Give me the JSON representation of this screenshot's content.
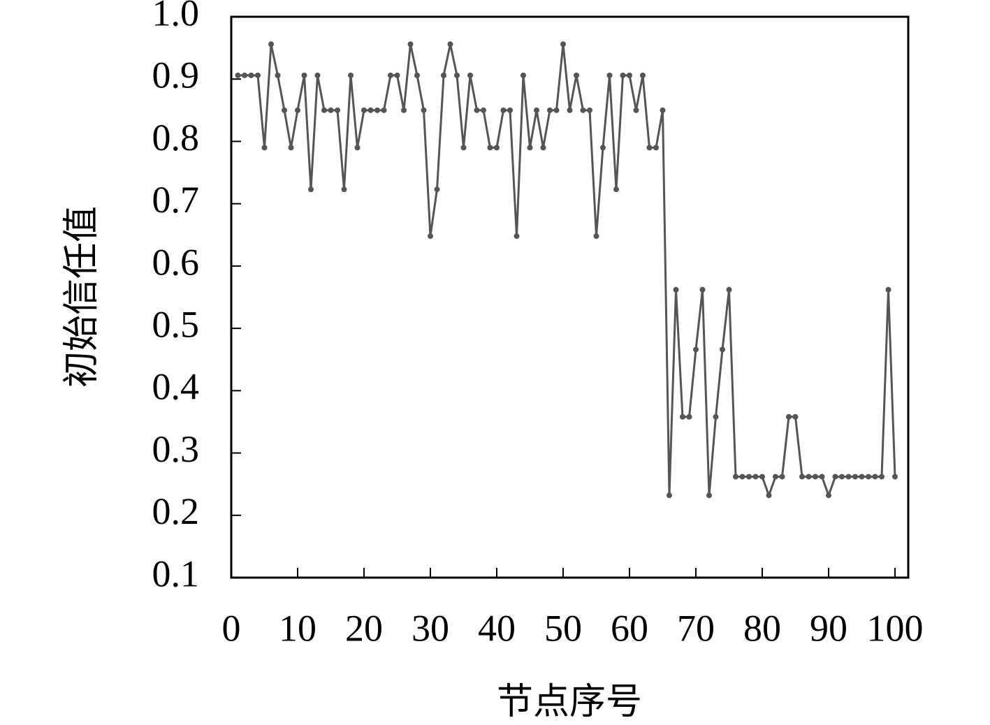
{
  "chart_data": {
    "type": "line",
    "xlabel": "节点序号",
    "ylabel": "初始信任值",
    "color": "#555555",
    "x": [
      1,
      2,
      3,
      4,
      5,
      6,
      7,
      8,
      9,
      10,
      11,
      12,
      13,
      14,
      15,
      16,
      17,
      18,
      19,
      20,
      21,
      22,
      23,
      24,
      25,
      26,
      27,
      28,
      29,
      30,
      31,
      32,
      33,
      34,
      35,
      36,
      37,
      38,
      39,
      40,
      41,
      42,
      43,
      44,
      45,
      46,
      47,
      48,
      49,
      50,
      51,
      52,
      53,
      54,
      55,
      56,
      57,
      58,
      59,
      60,
      61,
      62,
      63,
      64,
      65,
      66,
      67,
      68,
      69,
      70,
      71,
      72,
      73,
      74,
      75,
      76,
      77,
      78,
      79,
      80,
      81,
      82,
      83,
      84,
      85,
      86,
      87,
      88,
      89,
      90,
      91,
      92,
      93,
      94,
      95,
      96,
      97,
      98,
      99,
      100
    ],
    "values": [
      0.906,
      0.906,
      0.906,
      0.906,
      0.79,
      0.956,
      0.906,
      0.85,
      0.79,
      0.85,
      0.906,
      0.723,
      0.906,
      0.85,
      0.85,
      0.85,
      0.723,
      0.906,
      0.79,
      0.85,
      0.85,
      0.85,
      0.85,
      0.906,
      0.906,
      0.85,
      0.956,
      0.906,
      0.85,
      0.648,
      0.723,
      0.906,
      0.956,
      0.906,
      0.79,
      0.906,
      0.85,
      0.85,
      0.79,
      0.79,
      0.85,
      0.85,
      0.648,
      0.906,
      0.79,
      0.85,
      0.79,
      0.85,
      0.85,
      0.956,
      0.85,
      0.906,
      0.85,
      0.85,
      0.648,
      0.79,
      0.906,
      0.723,
      0.906,
      0.906,
      0.85,
      0.906,
      0.79,
      0.79,
      0.85,
      0.232,
      0.562,
      0.358,
      0.358,
      0.466,
      0.562,
      0.232,
      0.358,
      0.466,
      0.562,
      0.262,
      0.262,
      0.262,
      0.262,
      0.262,
      0.232,
      0.262,
      0.262,
      0.358,
      0.358,
      0.262,
      0.262,
      0.262,
      0.262,
      0.232,
      0.262,
      0.262,
      0.262,
      0.262,
      0.262,
      0.262,
      0.262,
      0.262,
      0.562,
      0.262
    ],
    "xlim": [
      0,
      102
    ],
    "ylim": [
      0.1,
      1.0
    ],
    "xticks": [
      0,
      10,
      20,
      30,
      40,
      50,
      60,
      70,
      80,
      90,
      100
    ],
    "yticks": [
      0.1,
      0.2,
      0.3,
      0.4,
      0.5,
      0.6,
      0.7,
      0.8,
      0.9,
      {
        "value": 1,
        "label": "1.0"
      }
    ]
  }
}
